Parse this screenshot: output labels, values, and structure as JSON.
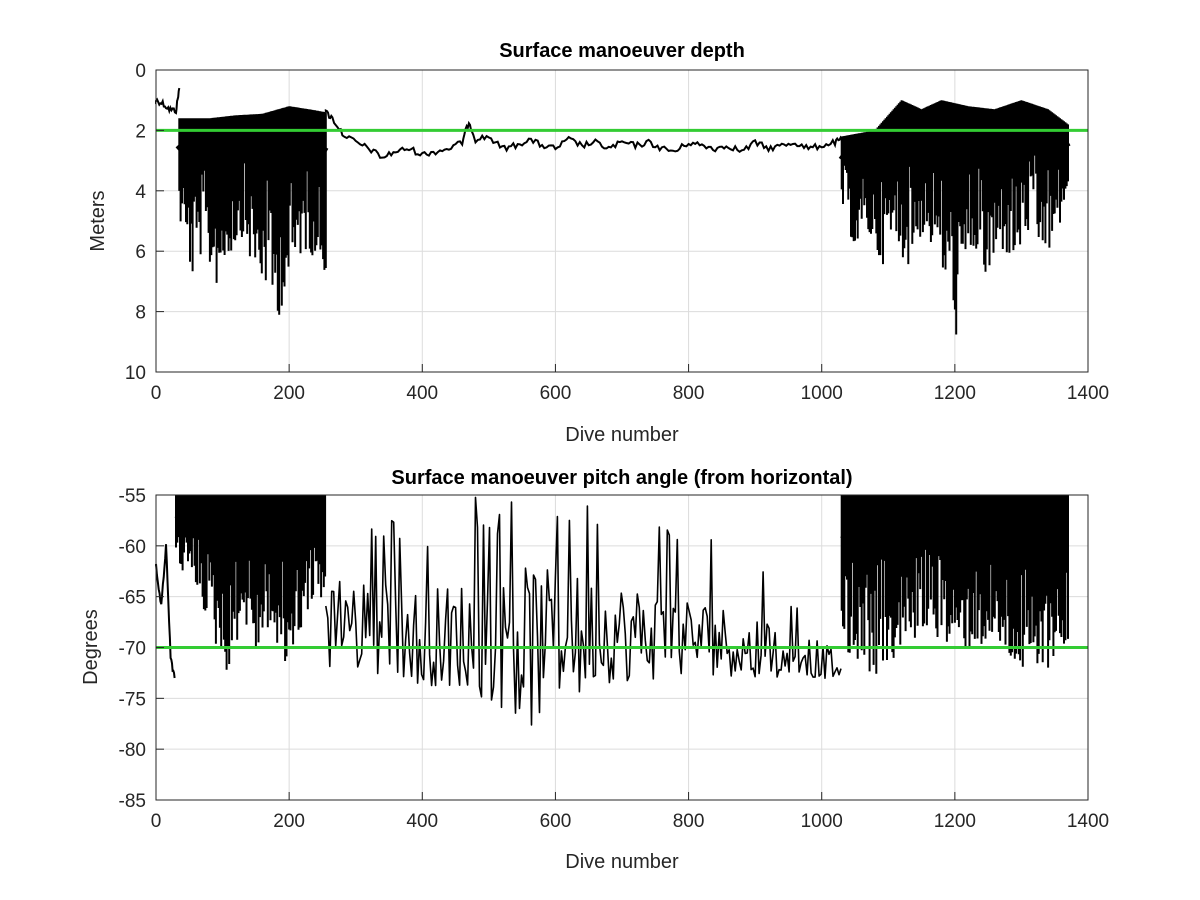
{
  "chart_data": [
    {
      "type": "line",
      "title": "Surface manoeuver depth",
      "xlabel": "Dive number",
      "ylabel": "Meters",
      "xlim": [
        0,
        1400
      ],
      "ylim": [
        0,
        10
      ],
      "y_reversed": true,
      "grid": true,
      "xticks": [
        0,
        200,
        400,
        600,
        800,
        1000,
        1200,
        1400
      ],
      "yticks": [
        0,
        2,
        4,
        6,
        8,
        10
      ],
      "series_color": "#000000",
      "reference_line": {
        "y": 2,
        "color": "#33cc33"
      },
      "segments": [
        {
          "kind": "trend",
          "points": [
            [
              0,
              1.0
            ],
            [
              10,
              1.1
            ],
            [
              20,
              1.3
            ],
            [
              30,
              1.35
            ],
            [
              35,
              0.6
            ]
          ]
        },
        {
          "kind": "band",
          "x_start": 35,
          "x_end": 255,
          "upper": [
            [
              35,
              1.6
            ],
            [
              80,
              1.6
            ],
            [
              120,
              1.5
            ],
            [
              160,
              1.45
            ],
            [
              200,
              1.2
            ],
            [
              230,
              1.3
            ],
            [
              255,
              1.4
            ]
          ],
          "lower": [
            [
              35,
              5.0
            ],
            [
              45,
              6.0
            ],
            [
              55,
              7.0
            ],
            [
              70,
              6.0
            ],
            [
              90,
              7.2
            ],
            [
              110,
              6.2
            ],
            [
              130,
              5.5
            ],
            [
              150,
              7.0
            ],
            [
              170,
              7.3
            ],
            [
              180,
              8.5
            ],
            [
              190,
              7.8
            ],
            [
              205,
              7.0
            ],
            [
              220,
              6.0
            ],
            [
              240,
              6.2
            ],
            [
              255,
              6.8
            ]
          ]
        },
        {
          "kind": "trend",
          "points": [
            [
              255,
              1.4
            ],
            [
              265,
              1.6
            ],
            [
              280,
              2.1
            ],
            [
              300,
              2.4
            ],
            [
              320,
              2.6
            ],
            [
              340,
              2.9
            ],
            [
              360,
              2.7
            ],
            [
              380,
              2.6
            ],
            [
              400,
              2.8
            ],
            [
              420,
              2.7
            ],
            [
              440,
              2.6
            ],
            [
              460,
              2.4
            ],
            [
              470,
              1.7
            ],
            [
              480,
              2.3
            ],
            [
              500,
              2.2
            ],
            [
              520,
              2.6
            ],
            [
              540,
              2.5
            ],
            [
              560,
              2.3
            ],
            [
              580,
              2.5
            ],
            [
              600,
              2.6
            ],
            [
              620,
              2.3
            ],
            [
              640,
              2.5
            ],
            [
              660,
              2.4
            ],
            [
              680,
              2.6
            ],
            [
              700,
              2.4
            ],
            [
              720,
              2.5
            ],
            [
              740,
              2.4
            ],
            [
              760,
              2.6
            ],
            [
              780,
              2.7
            ],
            [
              800,
              2.4
            ],
            [
              820,
              2.5
            ],
            [
              840,
              2.6
            ],
            [
              860,
              2.5
            ],
            [
              880,
              2.7
            ],
            [
              900,
              2.4
            ],
            [
              920,
              2.6
            ],
            [
              940,
              2.5
            ],
            [
              960,
              2.4
            ],
            [
              980,
              2.6
            ],
            [
              1000,
              2.5
            ],
            [
              1020,
              2.4
            ],
            [
              1030,
              2.3
            ]
          ]
        },
        {
          "kind": "band",
          "x_start": 1030,
          "x_end": 1370,
          "upper": [
            [
              1030,
              2.2
            ],
            [
              1080,
              2.0
            ],
            [
              1120,
              1.0
            ],
            [
              1150,
              1.3
            ],
            [
              1180,
              1.0
            ],
            [
              1220,
              1.2
            ],
            [
              1260,
              1.3
            ],
            [
              1300,
              1.0
            ],
            [
              1340,
              1.3
            ],
            [
              1370,
              1.8
            ]
          ],
          "lower": [
            [
              1030,
              4.5
            ],
            [
              1050,
              6.0
            ],
            [
              1070,
              5.5
            ],
            [
              1090,
              6.5
            ],
            [
              1110,
              5.8
            ],
            [
              1130,
              6.5
            ],
            [
              1150,
              5.5
            ],
            [
              1170,
              6.0
            ],
            [
              1190,
              7.5
            ],
            [
              1205,
              9.2
            ],
            [
              1215,
              7.0
            ],
            [
              1230,
              6.0
            ],
            [
              1250,
              7.3
            ],
            [
              1270,
              6.0
            ],
            [
              1290,
              6.5
            ],
            [
              1310,
              5.5
            ],
            [
              1330,
              6.2
            ],
            [
              1350,
              6.0
            ],
            [
              1370,
              4.0
            ]
          ]
        }
      ]
    },
    {
      "type": "line",
      "title": "Surface manoeuver pitch angle (from horizontal)",
      "xlabel": "Dive number",
      "ylabel": "Degrees",
      "xlim": [
        0,
        1400
      ],
      "ylim": [
        -85,
        -55
      ],
      "grid": true,
      "xticks": [
        0,
        200,
        400,
        600,
        800,
        1000,
        1200,
        1400
      ],
      "yticks": [
        -55,
        -60,
        -65,
        -70,
        -75,
        -80,
        -85
      ],
      "series_color": "#000000",
      "reference_line": {
        "y": -70,
        "color": "#33cc33"
      },
      "segments": [
        {
          "kind": "trend",
          "points": [
            [
              0,
              -62
            ],
            [
              8,
              -66
            ],
            [
              15,
              -60
            ],
            [
              22,
              -71
            ],
            [
              28,
              -73
            ]
          ]
        },
        {
          "kind": "band",
          "x_start": 30,
          "x_end": 255,
          "upper": [
            [
              30,
              -55
            ],
            [
              255,
              -55
            ]
          ],
          "lower": [
            [
              30,
              -62
            ],
            [
              60,
              -64
            ],
            [
              90,
              -70
            ],
            [
              110,
              -73
            ],
            [
              130,
              -67
            ],
            [
              150,
              -71
            ],
            [
              170,
              -68
            ],
            [
              190,
              -73
            ],
            [
              210,
              -70
            ],
            [
              230,
              -66
            ],
            [
              255,
              -65
            ]
          ]
        },
        {
          "kind": "osc",
          "x_start": 255,
          "x_end": 1030,
          "mid": [
            [
              255,
              -66
            ],
            [
              400,
              -69
            ],
            [
              600,
              -68
            ],
            [
              800,
              -69
            ],
            [
              950,
              -70
            ],
            [
              1030,
              -72
            ]
          ],
          "env_hi": [
            [
              255,
              -58
            ],
            [
              400,
              -57
            ],
            [
              460,
              -55
            ],
            [
              560,
              -55
            ],
            [
              620,
              -55
            ],
            [
              700,
              -56
            ],
            [
              800,
              -58
            ],
            [
              900,
              -62
            ],
            [
              1030,
              -68
            ]
          ],
          "env_lo": [
            [
              255,
              -72
            ],
            [
              400,
              -74
            ],
            [
              500,
              -75
            ],
            [
              560,
              -78
            ],
            [
              600,
              -75
            ],
            [
              700,
              -74
            ],
            [
              800,
              -73
            ],
            [
              950,
              -73
            ],
            [
              1030,
              -73
            ]
          ]
        },
        {
          "kind": "band",
          "x_start": 1030,
          "x_end": 1370,
          "upper": [
            [
              1030,
              -55
            ],
            [
              1370,
              -55
            ]
          ],
          "lower": [
            [
              1030,
              -70
            ],
            [
              1060,
              -72
            ],
            [
              1080,
              -73
            ],
            [
              1100,
              -72
            ],
            [
              1130,
              -70
            ],
            [
              1160,
              -68
            ],
            [
              1200,
              -71
            ],
            [
              1230,
              -70
            ],
            [
              1260,
              -70
            ],
            [
              1290,
              -72
            ],
            [
              1320,
              -74
            ],
            [
              1350,
              -71
            ],
            [
              1370,
              -70
            ]
          ]
        }
      ]
    }
  ]
}
